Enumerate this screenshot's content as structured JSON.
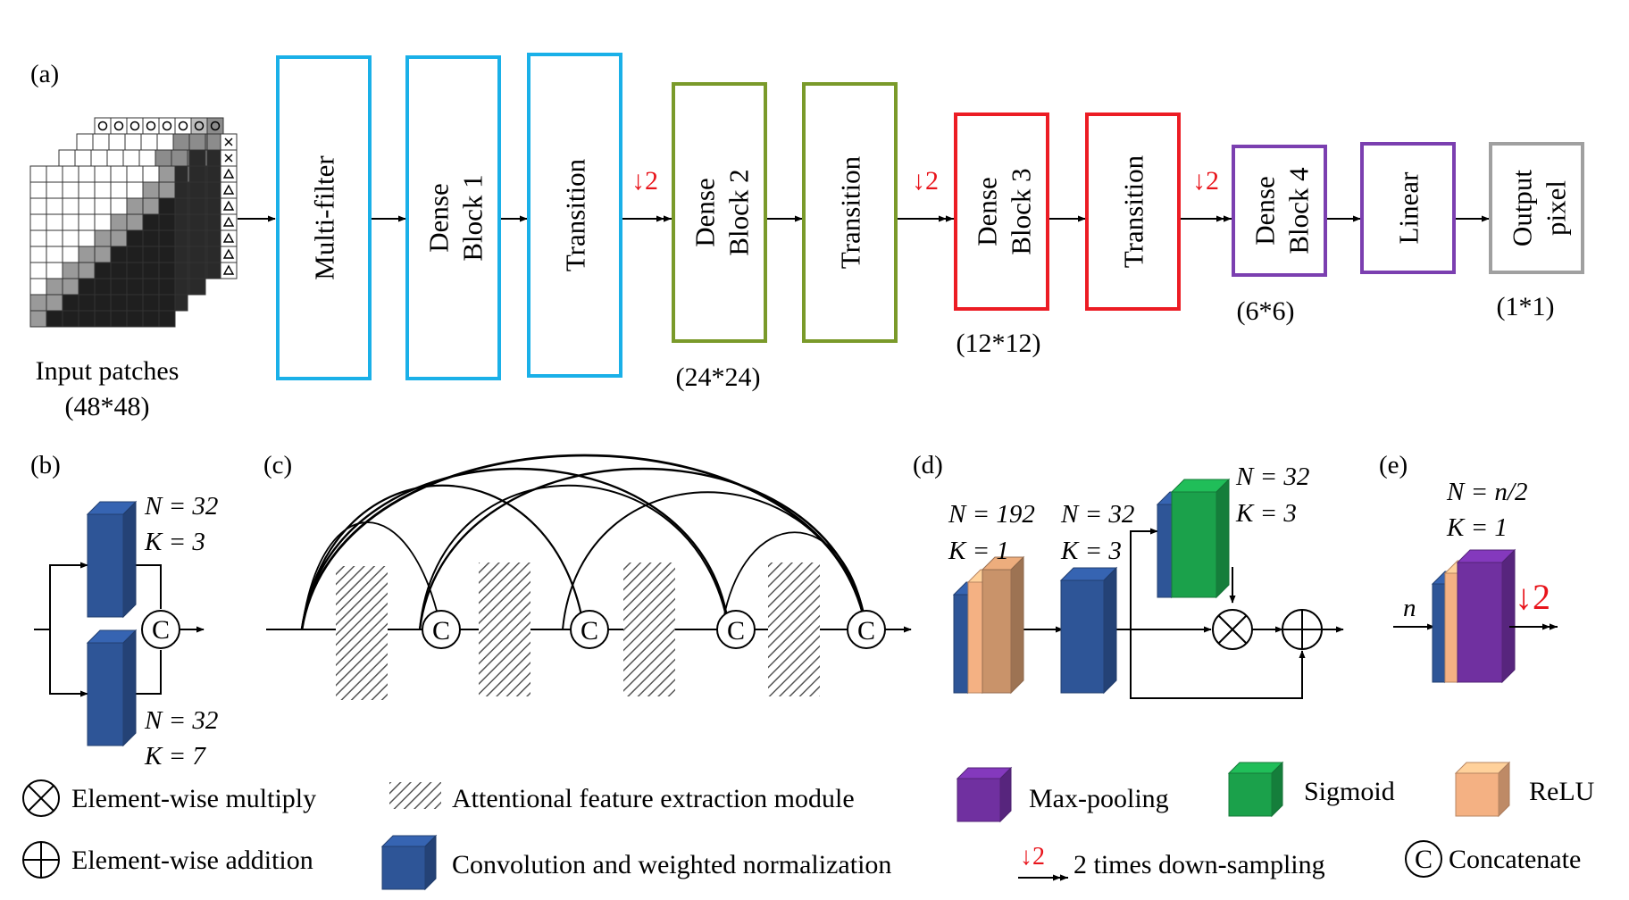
{
  "panels": {
    "a": "(a)",
    "b": "(b)",
    "c": "(c)",
    "d": "(d)",
    "e": "(e)"
  },
  "pipeline": {
    "input_label": "Input patches",
    "input_size": "(48*48)",
    "blocks": [
      {
        "label1": "Multi-filter",
        "label2": "",
        "color": "#1ab0e8"
      },
      {
        "label1": "Dense",
        "label2": "Block 1",
        "color": "#1ab0e8"
      },
      {
        "label1": "Transition",
        "label2": "",
        "color": "#1ab0e8"
      },
      {
        "label1": "Dense",
        "label2": "Block 2",
        "color": "#7a9a2a"
      },
      {
        "label1": "Transition",
        "label2": "",
        "color": "#7a9a2a"
      },
      {
        "label1": "Dense",
        "label2": "Block 3",
        "color": "#ec1c24"
      },
      {
        "label1": "Transition",
        "label2": "",
        "color": "#ec1c24"
      },
      {
        "label1": "Dense",
        "label2": "Block 4",
        "color": "#7b3fb0"
      },
      {
        "label1": "Linear",
        "label2": "",
        "color": "#7b3fb0"
      },
      {
        "label1": "Output",
        "label2": "pixel",
        "color": "#a0a0a0"
      }
    ],
    "sizes": [
      "(24*24)",
      "(12*12)",
      "(6*6)",
      "(1*1)"
    ],
    "downsample": "↓2"
  },
  "panel_b": {
    "top_n": "N = 32",
    "top_k": "K = 3",
    "bottom_n": "N = 32",
    "bottom_k": "K = 7",
    "concat": "C"
  },
  "panel_c": {
    "concat": "C"
  },
  "panel_d": {
    "n1": "N = 192",
    "k1": "K = 1",
    "n2": "N = 32",
    "k2": "K = 3",
    "n3": "N = 32",
    "k3": "K = 3"
  },
  "panel_e": {
    "n": "N = n/2",
    "k": "K = 1",
    "input": "n",
    "down": "↓2"
  },
  "legend": {
    "multiply": "Element-wise multiply",
    "addition": "Element-wise addition",
    "attention": "Attentional feature extraction module",
    "conv": "Convolution and weighted normalization",
    "maxpool": "Max-pooling",
    "sigmoid": "Sigmoid",
    "relu": "ReLU",
    "downsampling": "2 times down-sampling",
    "concatenate": "Concatenate",
    "concat_symbol": "C",
    "down_symbol": "↓2"
  },
  "colors": {
    "conv": "#2e5597",
    "relu": "#f4b183",
    "maxpool": "#7030a0",
    "sigmoid": "#1ba14b",
    "brown": "#c9936a"
  }
}
